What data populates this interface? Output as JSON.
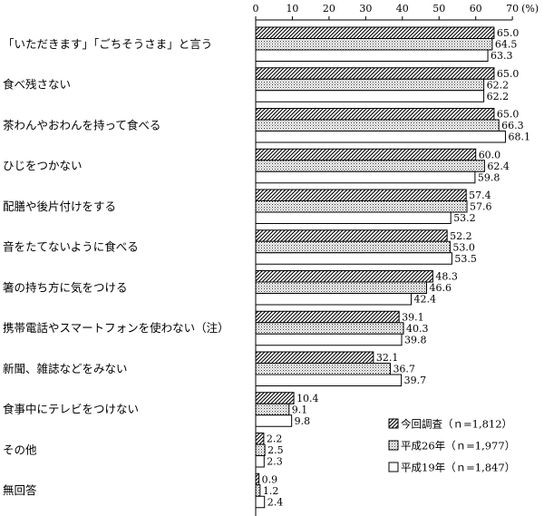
{
  "chart_data": {
    "type": "bar",
    "orientation": "horizontal",
    "unit_label": "(%)",
    "xlim": [
      0,
      70
    ],
    "xticks": [
      "0",
      "10",
      "20",
      "30",
      "40",
      "50",
      "60",
      "70"
    ],
    "grid": false,
    "legend_position": "bottom-right",
    "categories": [
      "「いただきます」「ごちそうさま」と言う",
      "食べ残さない",
      "茶わんやおわんを持って食べる",
      "ひじをつかない",
      "配膳や後片付けをする",
      "音をたてないように食べる",
      "箸の持ち方に気をつける",
      "携帯電話やスマートフォンを使わない（注）",
      "新聞、雑誌などをみない",
      "食事中にテレビをつけない",
      "その他",
      "無回答"
    ],
    "series": [
      {
        "name": "今回調査（ｎ=1,812）",
        "pattern": "hatch",
        "values": [
          65.0,
          65.0,
          65.0,
          60.0,
          57.4,
          52.2,
          48.3,
          39.1,
          32.1,
          10.4,
          2.2,
          0.9
        ],
        "labels": [
          "65.0",
          "65.0",
          "65.0",
          "60.0",
          "57.4",
          "52.2",
          "48.3",
          "39.1",
          "32.1",
          "10.4",
          "2.2",
          "0.9"
        ]
      },
      {
        "name": "平成26年（ｎ=1,977）",
        "pattern": "dots",
        "values": [
          64.5,
          62.2,
          66.3,
          62.4,
          57.6,
          53.0,
          46.6,
          40.3,
          36.7,
          9.1,
          2.5,
          1.2
        ],
        "labels": [
          "64.5",
          "62.2",
          "66.3",
          "62.4",
          "57.6",
          "53.0",
          "46.6",
          "40.3",
          "36.7",
          "9.1",
          "2.5",
          "1.2"
        ]
      },
      {
        "name": "平成19年（ｎ=1,847）",
        "pattern": "white",
        "values": [
          63.3,
          62.2,
          68.1,
          59.8,
          53.2,
          53.5,
          42.4,
          39.8,
          39.7,
          9.8,
          2.3,
          2.4
        ],
        "labels": [
          "63.3",
          "62.2",
          "68.1",
          "59.8",
          "53.2",
          "53.5",
          "42.4",
          "39.8",
          "39.7",
          "9.8",
          "2.3",
          "2.4"
        ]
      }
    ]
  }
}
